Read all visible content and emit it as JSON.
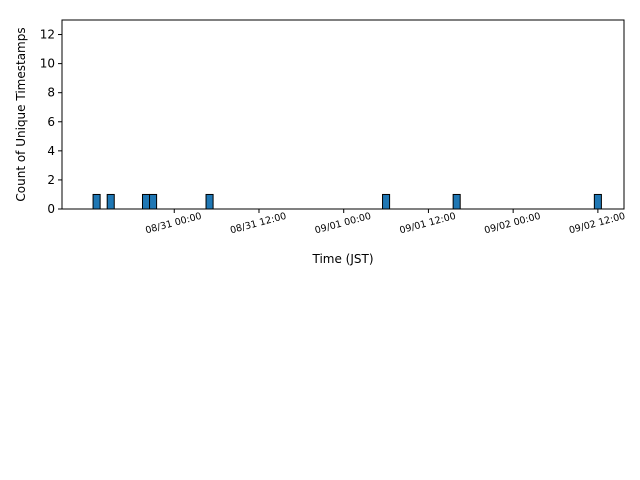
{
  "chart_data": {
    "type": "bar",
    "title": "",
    "xlabel": "Time (JST)",
    "ylabel": "Count of Unique Timestamps",
    "ylim": [
      0,
      13
    ],
    "yticks": [
      0,
      2,
      4,
      6,
      8,
      10,
      12
    ],
    "xlim": [
      "08/30 08:06",
      "09/02 15:42"
    ],
    "xticks": [
      "08/31 00:00",
      "08/31 12:00",
      "09/01 00:00",
      "09/01 12:00",
      "09/02 00:00",
      "09/02 12:00"
    ],
    "bin_width_hours": 1,
    "bars": [
      {
        "start": "08/30 12:30",
        "value": 1
      },
      {
        "start": "08/30 14:30",
        "value": 1
      },
      {
        "start": "08/30 19:30",
        "value": 1
      },
      {
        "start": "08/30 20:30",
        "value": 1
      },
      {
        "start": "08/31 04:30",
        "value": 1
      },
      {
        "start": "09/01 05:30",
        "value": 1
      },
      {
        "start": "09/01 15:30",
        "value": 1
      },
      {
        "start": "09/02 11:30",
        "value": 1
      }
    ],
    "colors": {
      "bar_fill": "#1f77b4",
      "bar_edge": "#000000"
    },
    "grid": false,
    "legend": false
  }
}
